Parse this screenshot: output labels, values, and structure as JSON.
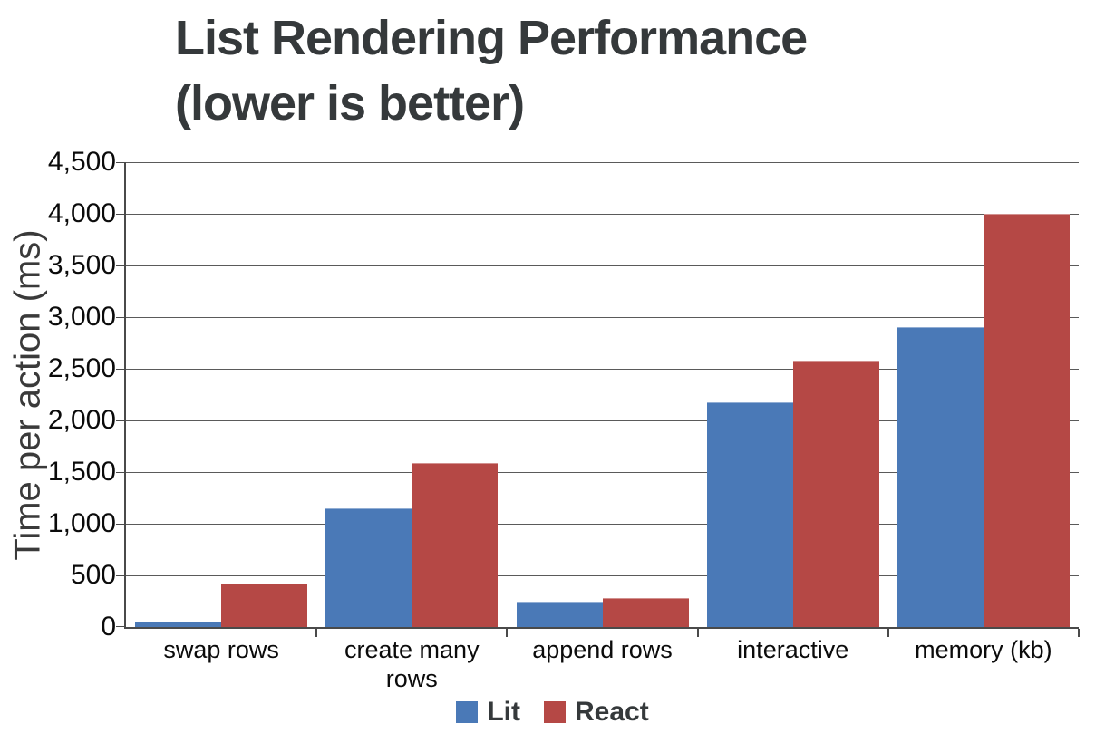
{
  "chart": {
    "title_line1": "List Rendering Performance",
    "title_line2": "(lower is better)"
  },
  "chart_data": {
    "type": "bar",
    "title": "List Rendering Performance (lower is better)",
    "xlabel": "",
    "ylabel": "Time per action (ms)",
    "categories": [
      "swap rows",
      "create many rows",
      "append rows",
      "interactive",
      "memory (kb)"
    ],
    "series": [
      {
        "name": "Lit",
        "color": "#4a79b7",
        "values": [
          50,
          1150,
          250,
          2175,
          2900
        ]
      },
      {
        "name": "React",
        "color": "#b54845",
        "values": [
          420,
          1590,
          280,
          2575,
          4000
        ]
      }
    ],
    "ylim": [
      0,
      4500
    ],
    "ytick_values": [
      0,
      500,
      1000,
      1500,
      2000,
      2500,
      3000,
      3500,
      4000,
      4500
    ],
    "ytick_labels": [
      "0",
      "500",
      "1,000",
      "1,500",
      "2,000",
      "2,500",
      "3,000",
      "3,500",
      "4,000",
      "4,500"
    ],
    "grid": true,
    "legend_position": "bottom"
  },
  "ui_colors": {
    "title_text": "#35393b",
    "axis_line": "#4a4a4a",
    "gridline": "#5a5a5a",
    "tick_text": "#0b0b0b",
    "lit_blue": "#4a79b7",
    "react_red": "#b54845"
  }
}
